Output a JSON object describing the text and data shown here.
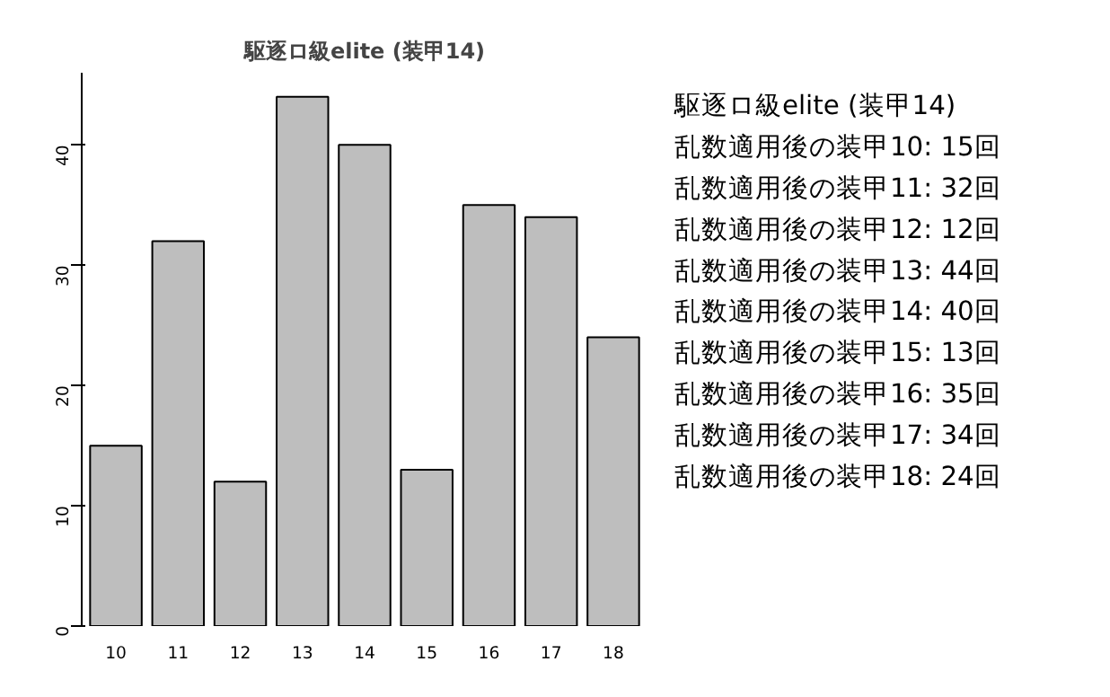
{
  "chart_data": [
    {
      "type": "bar",
      "title": "駆逐ロ級elite (装甲14)",
      "categories": [
        "10",
        "11",
        "12",
        "13",
        "14",
        "15",
        "16",
        "17",
        "18"
      ],
      "values": [
        15,
        32,
        12,
        44,
        40,
        13,
        35,
        34,
        24
      ],
      "color": "#bebebe",
      "ylim": [
        0,
        46
      ],
      "yticks": [
        0,
        10,
        20,
        30,
        40
      ],
      "grid": false
    },
    {
      "type": "other",
      "title": "駆逐ロ級elite (装甲14)",
      "annotations": [
        "乱数適用後の装甲10: 15回",
        "乱数適用後の装甲11: 32回",
        "乱数適用後の装甲12: 12回",
        "乱数適用後の装甲13: 44回",
        "乱数適用後の装甲14: 40回",
        "乱数適用後の装甲15: 13回",
        "乱数適用後の装甲16: 35回",
        "乱数適用後の装甲17: 34回",
        "乱数適用後の装甲18: 24回"
      ]
    }
  ]
}
